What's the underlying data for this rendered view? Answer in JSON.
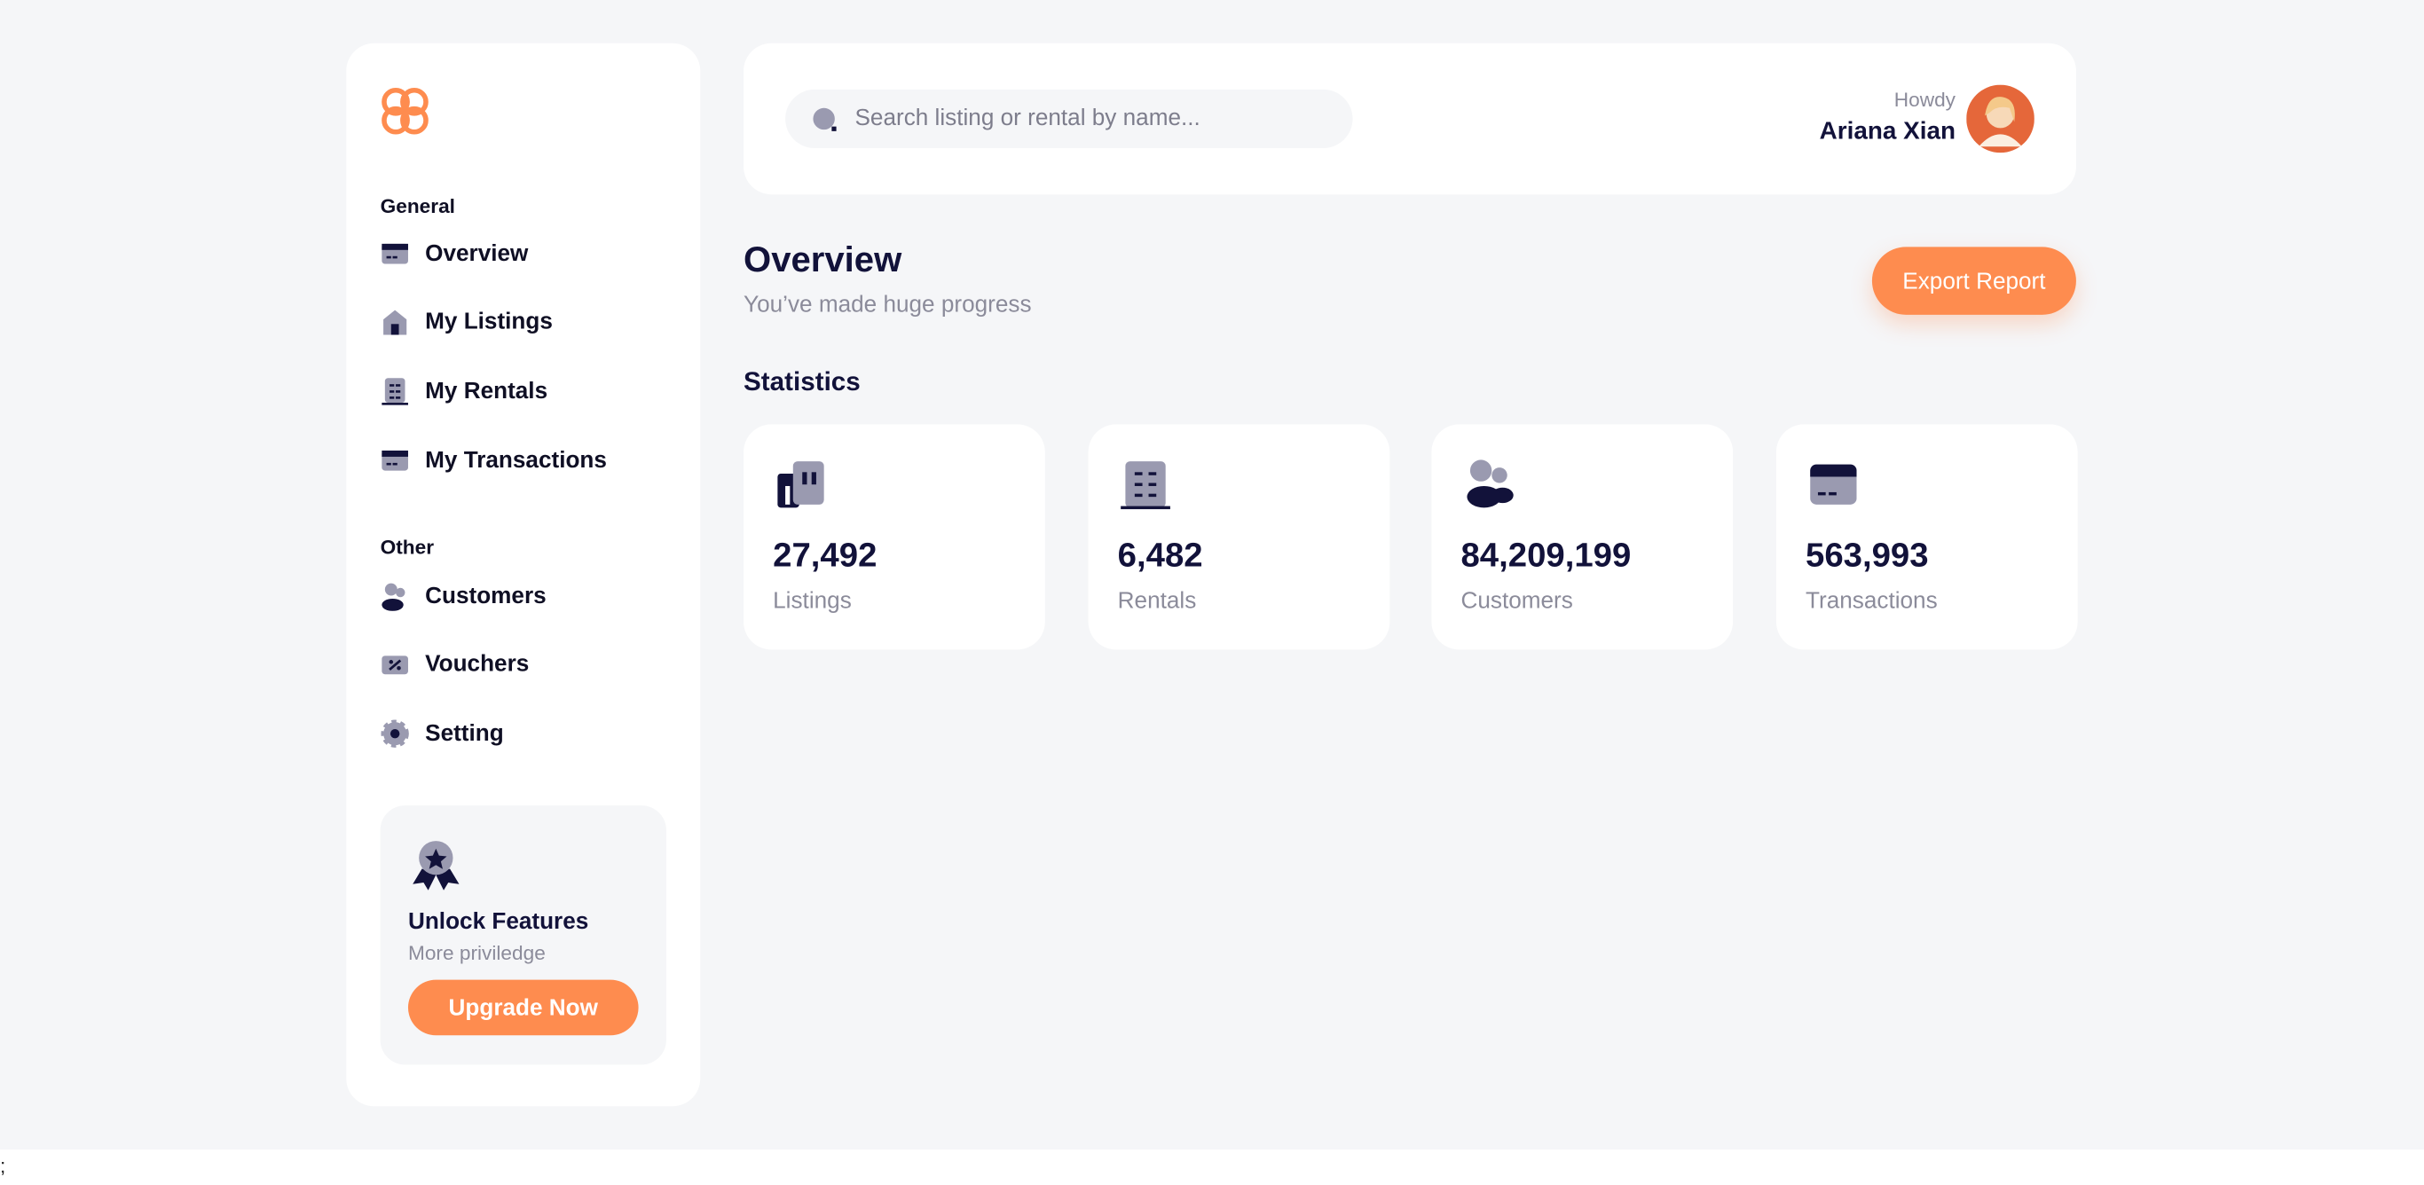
{
  "sidebar": {
    "sections": [
      {
        "title": "General",
        "items": [
          "Overview",
          "My Listings",
          "My Rentals",
          "My Transactions"
        ]
      },
      {
        "title": "Other",
        "items": [
          "Customers",
          "Vouchers",
          "Setting"
        ]
      }
    ],
    "promo": {
      "title": "Unlock Features",
      "subtitle": "More priviledge",
      "button": "Upgrade Now"
    }
  },
  "header": {
    "search_placeholder": "Search listing or rental by name...",
    "greeting": "Howdy",
    "user": "Ariana Xian"
  },
  "page": {
    "title": "Overview",
    "subtitle": "You’ve made huge progress",
    "button": "Export Report",
    "section": "Statistics"
  },
  "stats": [
    {
      "value": "27,492",
      "label": "Listings"
    },
    {
      "value": "6,482",
      "label": "Rentals"
    },
    {
      "value": "84,209,199",
      "label": "Customers"
    },
    {
      "value": "563,993",
      "label": "Transactions"
    }
  ],
  "footer": ";"
}
